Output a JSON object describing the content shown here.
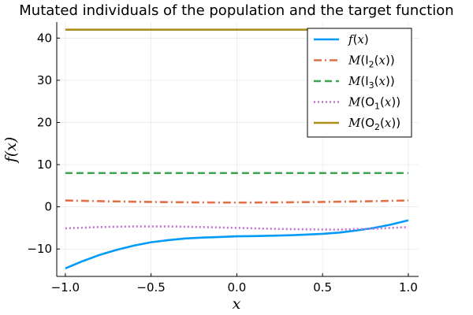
{
  "chart_data": {
    "type": "line",
    "title": "Mutated individuals of the population and the target function",
    "xlabel": "x",
    "ylabel": "f(x)",
    "xlim": [
      -1.05,
      1.06
    ],
    "ylim": [
      -16.5,
      43.8
    ],
    "xticks": [
      -1.0,
      -0.5,
      0.0,
      0.5,
      1.0
    ],
    "xtick_labels": [
      "−1.0",
      "−0.5",
      "0.0",
      "0.5",
      "1.0"
    ],
    "yticks": [
      -10,
      0,
      10,
      20,
      30,
      40
    ],
    "ytick_labels": [
      "−10",
      "0",
      "10",
      "20",
      "30",
      "40"
    ],
    "grid": true,
    "legend_position": "top-right",
    "series": [
      {
        "name": "f(x)",
        "legend": {
          "pre": "",
          "ital": "f",
          "mid": "(",
          "ital2": "x",
          "sub": "",
          "post": ")"
        },
        "color": "#009af9",
        "dash": "solid",
        "x": [
          -1.0,
          -0.9,
          -0.8,
          -0.7,
          -0.6,
          -0.5,
          -0.4,
          -0.3,
          -0.2,
          -0.1,
          0.0,
          0.1,
          0.2,
          0.3,
          0.4,
          0.5,
          0.6,
          0.7,
          0.8,
          0.9,
          1.0
        ],
        "y": [
          -14.6,
          -12.9,
          -11.4,
          -10.2,
          -9.2,
          -8.4,
          -7.9,
          -7.5,
          -7.3,
          -7.15,
          -7.0,
          -6.95,
          -6.85,
          -6.75,
          -6.6,
          -6.4,
          -6.1,
          -5.6,
          -5.0,
          -4.2,
          -3.2
        ]
      },
      {
        "name": "M(I2(x))",
        "legend": {
          "pre": "M(I",
          "ital": "",
          "mid": "",
          "ital2": "x",
          "sub": "2",
          "post": "))"
        },
        "color": "#e26f46",
        "dash": "dashdot",
        "x": [
          -1.0,
          -0.75,
          -0.5,
          -0.25,
          0.0,
          0.25,
          0.5,
          0.75,
          1.0
        ],
        "y": [
          1.5,
          1.3,
          1.15,
          1.05,
          1.0,
          1.05,
          1.15,
          1.3,
          1.5
        ]
      },
      {
        "name": "M(I3(x))",
        "legend": {
          "pre": "M(I",
          "ital": "",
          "mid": "",
          "ital2": "x",
          "sub": "3",
          "post": "))"
        },
        "color": "#3da44d",
        "dash": "dash",
        "x": [
          -1.0,
          1.0
        ],
        "y": [
          8.0,
          8.0
        ]
      },
      {
        "name": "M(O1(x))",
        "legend": {
          "pre": "M(O",
          "ital": "",
          "mid": "",
          "ital2": "x",
          "sub": "1",
          "post": "))"
        },
        "color": "#c271d2",
        "dash": "dot",
        "x": [
          -1.0,
          -0.8,
          -0.6,
          -0.4,
          -0.2,
          0.0,
          0.2,
          0.4,
          0.6,
          0.8,
          1.0
        ],
        "y": [
          -5.1,
          -4.8,
          -4.65,
          -4.65,
          -4.8,
          -5.0,
          -5.2,
          -5.35,
          -5.4,
          -5.2,
          -4.8
        ]
      },
      {
        "name": "M(O2(x))",
        "legend": {
          "pre": "M(O",
          "ital": "",
          "mid": "",
          "ital2": "x",
          "sub": "2",
          "post": "))"
        },
        "color": "#ac8d18",
        "dash": "solid",
        "x": [
          -1.0,
          1.0
        ],
        "y": [
          42.0,
          42.0
        ]
      }
    ]
  }
}
